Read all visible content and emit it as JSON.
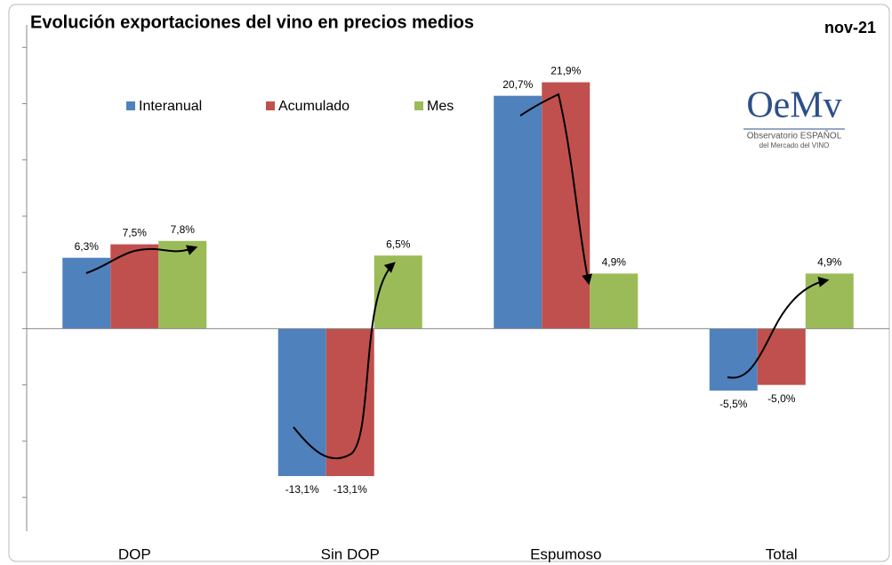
{
  "chart_data": {
    "type": "bar",
    "title": "Evolución exportaciones del vino en precios medios",
    "date_label": "nov-21",
    "logo": {
      "mark": "OeMv",
      "line1": "Observatorio ESPAÑOL",
      "line2": "del Mercado del VINO"
    },
    "categories": [
      "DOP",
      "Sin DOP",
      "Espumoso",
      "Total"
    ],
    "series": [
      {
        "name": "Interanual",
        "color": "#4f81bd",
        "values": [
          6.3,
          -13.1,
          20.7,
          -5.5
        ],
        "value_labels": [
          "6,3%",
          "-13,1%",
          "20,7%",
          "-5,5%"
        ]
      },
      {
        "name": "Acumulado",
        "color": "#c0504d",
        "values": [
          7.5,
          -13.1,
          21.9,
          -5.0
        ],
        "value_labels": [
          "7,5%",
          "-13,1%",
          "21,9%",
          "-5,0%"
        ]
      },
      {
        "name": "Mes",
        "color": "#9bbb59",
        "values": [
          7.8,
          6.5,
          4.9,
          4.9
        ],
        "value_labels": [
          "7,8%",
          "6,5%",
          "4,9%",
          "4,9%"
        ]
      }
    ],
    "ylim": [
      -18,
      27
    ],
    "yticks": [
      -15,
      -10,
      -5,
      0,
      5,
      10,
      15,
      20,
      25
    ],
    "legend": "top"
  }
}
